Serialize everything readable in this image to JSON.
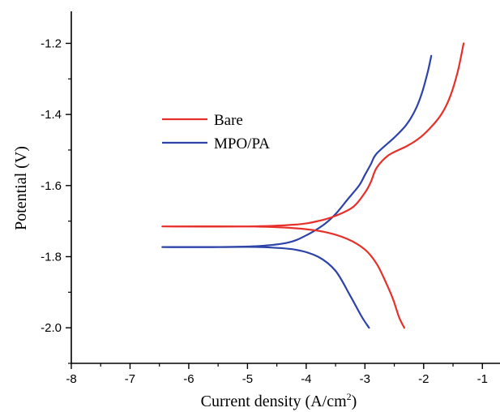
{
  "chart_data": {
    "type": "line",
    "xlabel": "Current density (A/cm",
    "xlabel_sup": "2",
    "xlabel_close": ")",
    "ylabel": "Potential (V)",
    "xlim": [
      -8,
      -0.7
    ],
    "ylim": [
      -2.1,
      -1.11
    ],
    "xticks": [
      -8,
      -7,
      -6,
      -5,
      -4,
      -3,
      -2,
      -1
    ],
    "yticks": [
      -2.0,
      -1.8,
      -1.6,
      -1.4,
      -1.2
    ],
    "x_tick_labels": [
      "-8",
      "-7",
      "-6",
      "-5",
      "-4",
      "-3",
      "-2",
      "-1"
    ],
    "y_tick_labels": [
      "-2.0",
      "-1.8",
      "-1.6",
      "-1.4",
      "-1.2"
    ],
    "grid": false,
    "legend_position": "upper-left",
    "series": [
      {
        "name": "Bare",
        "color": "#e8302a",
        "points": [
          [
            -2.33,
            -2.0
          ],
          [
            -2.42,
            -1.97
          ],
          [
            -2.52,
            -1.92
          ],
          [
            -2.65,
            -1.87
          ],
          [
            -2.8,
            -1.82
          ],
          [
            -3.0,
            -1.78
          ],
          [
            -3.3,
            -1.75
          ],
          [
            -3.7,
            -1.73
          ],
          [
            -4.2,
            -1.72
          ],
          [
            -5.0,
            -1.715
          ],
          [
            -6.45,
            -1.715
          ],
          [
            -5.0,
            -1.715
          ],
          [
            -4.2,
            -1.71
          ],
          [
            -3.8,
            -1.7
          ],
          [
            -3.5,
            -1.685
          ],
          [
            -3.2,
            -1.66
          ],
          [
            -3.0,
            -1.62
          ],
          [
            -2.9,
            -1.59
          ],
          [
            -2.8,
            -1.55
          ],
          [
            -2.6,
            -1.515
          ],
          [
            -2.3,
            -1.49
          ],
          [
            -2.1,
            -1.47
          ],
          [
            -1.9,
            -1.44
          ],
          [
            -1.7,
            -1.4
          ],
          [
            -1.55,
            -1.35
          ],
          [
            -1.42,
            -1.28
          ],
          [
            -1.32,
            -1.2
          ]
        ]
      },
      {
        "name": "MPO/PA",
        "color": "#2e43a8",
        "points": [
          [
            -2.93,
            -2.0
          ],
          [
            -3.05,
            -1.97
          ],
          [
            -3.25,
            -1.91
          ],
          [
            -3.5,
            -1.84
          ],
          [
            -3.8,
            -1.8
          ],
          [
            -4.2,
            -1.78
          ],
          [
            -4.8,
            -1.773
          ],
          [
            -5.5,
            -1.773
          ],
          [
            -6.45,
            -1.773
          ],
          [
            -5.5,
            -1.773
          ],
          [
            -4.8,
            -1.77
          ],
          [
            -4.3,
            -1.76
          ],
          [
            -4.0,
            -1.74
          ],
          [
            -3.7,
            -1.71
          ],
          [
            -3.5,
            -1.68
          ],
          [
            -3.3,
            -1.64
          ],
          [
            -3.1,
            -1.6
          ],
          [
            -3.0,
            -1.57
          ],
          [
            -2.9,
            -1.54
          ],
          [
            -2.8,
            -1.51
          ],
          [
            -2.5,
            -1.465
          ],
          [
            -2.3,
            -1.43
          ],
          [
            -2.15,
            -1.39
          ],
          [
            -2.03,
            -1.34
          ],
          [
            -1.93,
            -1.28
          ],
          [
            -1.87,
            -1.235
          ]
        ]
      }
    ]
  }
}
